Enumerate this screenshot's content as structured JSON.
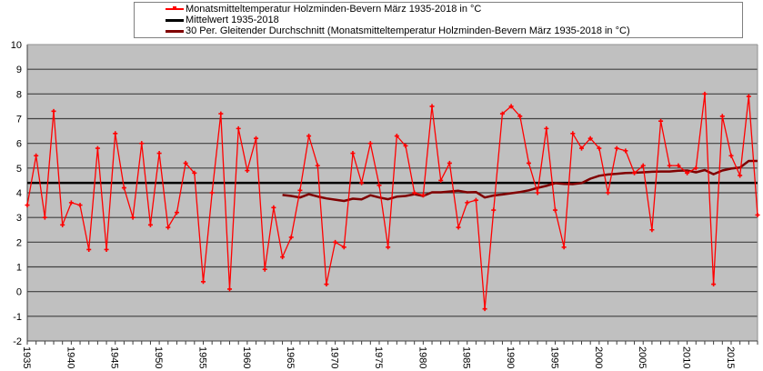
{
  "chart_data": {
    "type": "line",
    "title": "",
    "xlabel": "",
    "ylabel": "",
    "ylim": [
      -2,
      10
    ],
    "xlim": [
      1935,
      2018
    ],
    "yticks": [
      -2,
      -1,
      0,
      1,
      2,
      3,
      4,
      5,
      6,
      7,
      8,
      9,
      10
    ],
    "xtick_labels": [
      "1935",
      "1940",
      "1945",
      "1950",
      "1955",
      "1960",
      "1965",
      "1970",
      "1975",
      "1980",
      "1985",
      "1990",
      "1995",
      "2000",
      "2005",
      "2010",
      "2015"
    ],
    "grid": true,
    "legend_position": "top",
    "x": [
      1935,
      1936,
      1937,
      1938,
      1939,
      1940,
      1941,
      1942,
      1943,
      1944,
      1945,
      1946,
      1947,
      1948,
      1949,
      1950,
      1951,
      1952,
      1953,
      1954,
      1955,
      1956,
      1957,
      1958,
      1959,
      1960,
      1961,
      1962,
      1963,
      1964,
      1965,
      1966,
      1967,
      1968,
      1969,
      1970,
      1971,
      1972,
      1973,
      1974,
      1975,
      1976,
      1977,
      1978,
      1979,
      1980,
      1981,
      1982,
      1983,
      1984,
      1985,
      1986,
      1987,
      1988,
      1989,
      1990,
      1991,
      1992,
      1993,
      1994,
      1995,
      1996,
      1997,
      1998,
      1999,
      2000,
      2001,
      2002,
      2003,
      2004,
      2005,
      2006,
      2007,
      2008,
      2009,
      2010,
      2011,
      2012,
      2013,
      2014,
      2015,
      2016,
      2017,
      2018
    ],
    "series": [
      {
        "name": "Monatsmitteltemperatur Holzminden-Bevern März 1935-2018 in °C",
        "color": "#ff0000",
        "marker": "+",
        "values": [
          3.5,
          5.5,
          3.0,
          7.3,
          2.7,
          3.6,
          3.5,
          1.7,
          5.8,
          1.7,
          6.4,
          4.2,
          3.0,
          6.0,
          2.7,
          5.6,
          2.6,
          3.2,
          5.2,
          4.8,
          0.4,
          4.0,
          7.2,
          0.1,
          6.6,
          4.9,
          6.2,
          0.9,
          3.4,
          1.4,
          2.2,
          4.1,
          6.3,
          5.1,
          0.3,
          2.0,
          1.8,
          5.6,
          4.4,
          6.0,
          4.3,
          1.8,
          6.3,
          5.9,
          4.0,
          3.9,
          7.5,
          4.5,
          5.2,
          2.6,
          3.6,
          3.7,
          -0.7,
          3.3,
          7.2,
          7.5,
          7.1,
          5.2,
          4.0,
          6.6,
          3.3,
          1.8,
          6.4,
          5.8,
          6.2,
          5.8,
          4.0,
          5.8,
          5.7,
          4.8,
          5.1,
          2.5,
          6.9,
          5.1,
          5.1,
          4.8,
          5.0,
          8.0,
          0.3,
          7.1,
          5.5,
          4.7,
          7.9,
          3.1
        ]
      },
      {
        "name": "Mittelwert 1935-2018",
        "color": "#000000",
        "values": [
          4.4,
          4.4,
          4.4,
          4.4,
          4.4,
          4.4,
          4.4,
          4.4,
          4.4,
          4.4,
          4.4,
          4.4,
          4.4,
          4.4,
          4.4,
          4.4,
          4.4,
          4.4,
          4.4,
          4.4,
          4.4,
          4.4,
          4.4,
          4.4,
          4.4,
          4.4,
          4.4,
          4.4,
          4.4,
          4.4,
          4.4,
          4.4,
          4.4,
          4.4,
          4.4,
          4.4,
          4.4,
          4.4,
          4.4,
          4.4,
          4.4,
          4.4,
          4.4,
          4.4,
          4.4,
          4.4,
          4.4,
          4.4,
          4.4,
          4.4,
          4.4,
          4.4,
          4.4,
          4.4,
          4.4,
          4.4,
          4.4,
          4.4,
          4.4,
          4.4,
          4.4,
          4.4,
          4.4,
          4.4,
          4.4,
          4.4,
          4.4,
          4.4,
          4.4,
          4.4,
          4.4,
          4.4,
          4.4,
          4.4,
          4.4,
          4.4,
          4.4,
          4.4,
          4.4,
          4.4,
          4.4,
          4.4,
          4.4,
          4.4
        ]
      },
      {
        "name": "30 Per. Gleitender Durchschnitt (Monatsmitteltemperatur Holzminden-Bevern März 1935-2018 in °C)",
        "color": "#800000",
        "values": [
          null,
          null,
          null,
          null,
          null,
          null,
          null,
          null,
          null,
          null,
          null,
          null,
          null,
          null,
          null,
          null,
          null,
          null,
          null,
          null,
          null,
          null,
          null,
          null,
          null,
          null,
          null,
          null,
          null,
          3.91,
          3.87,
          3.81,
          3.94,
          3.85,
          3.77,
          3.72,
          3.67,
          3.76,
          3.73,
          3.9,
          3.81,
          3.74,
          3.84,
          3.87,
          3.94,
          3.87,
          4.02,
          4.02,
          4.05,
          4.08,
          4.02,
          4.03,
          3.81,
          3.89,
          3.93,
          3.98,
          4.03,
          4.1,
          4.2,
          4.28,
          4.39,
          4.36,
          4.35,
          4.39,
          4.57,
          4.69,
          4.74,
          4.77,
          4.8,
          4.81,
          4.83,
          4.85,
          4.86,
          4.86,
          4.89,
          4.9,
          4.83,
          4.92,
          4.75,
          4.9,
          4.98,
          5.02,
          5.29,
          5.29
        ]
      }
    ]
  },
  "legend": {
    "items": [
      {
        "label": "Monatsmitteltemperatur Holzminden-Bevern März 1935-2018 in °C"
      },
      {
        "label": "Mittelwert 1935-2018"
      },
      {
        "label": "30 Per. Gleitender Durchschnitt (Monatsmitteltemperatur Holzminden-Bevern März 1935-2018 in °C)"
      }
    ]
  },
  "style": {
    "plot_bg": "#c0c0c0",
    "grid_color": "#404040",
    "axis_color": "#404040"
  }
}
